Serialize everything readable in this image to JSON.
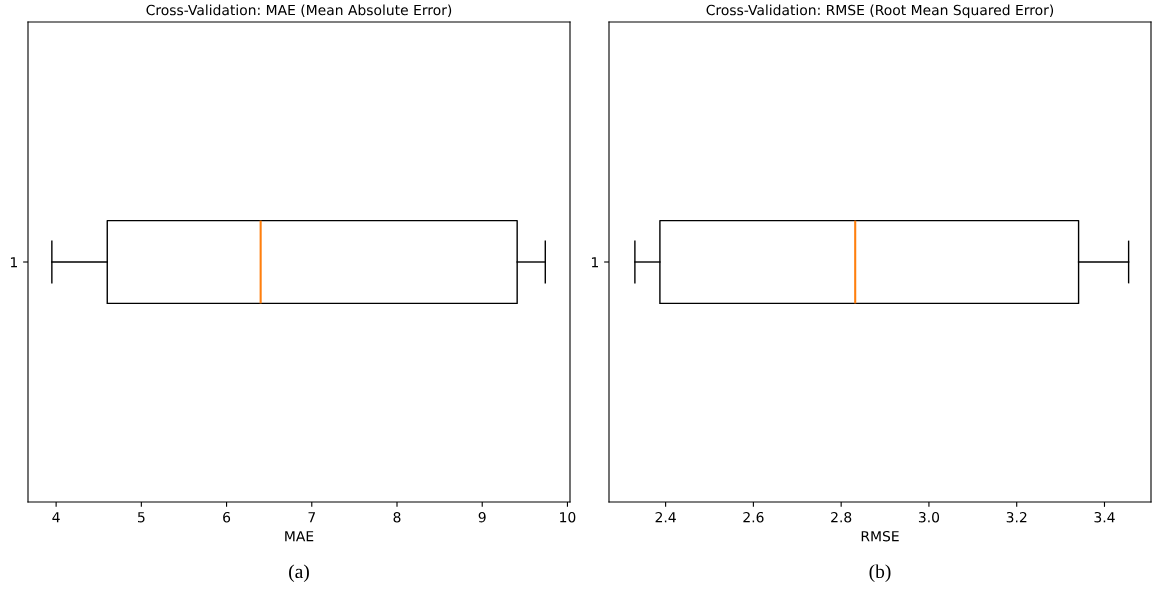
{
  "chart_data": [
    {
      "type": "box",
      "title": "Cross-Validation: MAE (Mean Absolute Error)",
      "xlabel": "MAE",
      "orientation": "horizontal",
      "categories": [
        "1"
      ],
      "boxes": [
        {
          "low": 3.95,
          "q1": 4.6,
          "median": 6.4,
          "q3": 9.41,
          "high": 9.74
        }
      ],
      "xlim": [
        3.67,
        10.03
      ],
      "xticks": [
        4,
        5,
        6,
        7,
        8,
        9,
        10
      ],
      "grid": false,
      "annotations": [
        "(a)"
      ]
    },
    {
      "type": "box",
      "title": "Cross-Validation: RMSE (Root Mean Squared Error)",
      "xlabel": "RMSE",
      "orientation": "horizontal",
      "categories": [
        "1"
      ],
      "boxes": [
        {
          "low": 2.33,
          "q1": 2.387,
          "median": 2.832,
          "q3": 3.341,
          "high": 3.455
        }
      ],
      "xlim": [
        2.271,
        3.506
      ],
      "xticks": [
        2.4,
        2.6,
        2.8,
        {
          "value": 3.0,
          "label": "3.0"
        },
        3.2,
        3.4
      ],
      "grid": false,
      "annotations": [
        "(b)"
      ]
    }
  ]
}
